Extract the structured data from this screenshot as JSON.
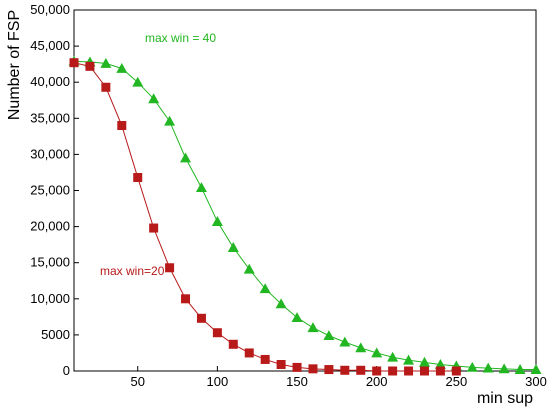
{
  "chart_data": {
    "type": "line",
    "xlabel": "min sup",
    "ylabel": "Number of FSP",
    "xlim": [
      10,
      300
    ],
    "ylim": [
      0,
      50000
    ],
    "x_ticks": [
      50,
      100,
      150,
      200,
      250,
      300
    ],
    "y_ticks": [
      0,
      5000,
      10000,
      15000,
      20000,
      25000,
      30000,
      35000,
      40000,
      45000,
      50000
    ],
    "x_tick_labels": [
      "50",
      "100",
      "150",
      "200",
      "250",
      "300"
    ],
    "y_tick_labels": [
      "0",
      "5000",
      "10,000",
      "15,000",
      "20,000",
      "25,000",
      "30,000",
      "35,000",
      "40,000",
      "45,000",
      "50,000"
    ],
    "grid": false,
    "annotations": [
      "max win = 40",
      "max win=20"
    ],
    "series": [
      {
        "color": "#22b722",
        "marker": "triangle",
        "x": [
          10,
          20,
          30,
          40,
          50,
          60,
          70,
          80,
          90,
          100,
          110,
          120,
          130,
          140,
          150,
          160,
          170,
          180,
          190,
          200,
          210,
          220,
          230,
          240,
          250,
          260,
          270,
          280,
          290,
          300
        ],
        "values": [
          42900,
          42800,
          42600,
          41900,
          40000,
          37700,
          34600,
          29500,
          25400,
          20700,
          17100,
          14100,
          11400,
          9300,
          7400,
          6000,
          4900,
          4000,
          3200,
          2500,
          1900,
          1500,
          1200,
          900,
          700,
          500,
          400,
          300,
          200,
          200
        ]
      },
      {
        "color": "#b81a1a",
        "marker": "square",
        "x": [
          10,
          20,
          30,
          40,
          50,
          60,
          70,
          80,
          90,
          100,
          110,
          120,
          130,
          140,
          150,
          160,
          170,
          180,
          190,
          200,
          210,
          220,
          230,
          240,
          250
        ],
        "values": [
          42700,
          42200,
          39300,
          34000,
          26800,
          19800,
          14300,
          10000,
          7300,
          5300,
          3700,
          2500,
          1600,
          900,
          500,
          300,
          200,
          100,
          100,
          0,
          0,
          0,
          0,
          0,
          0
        ]
      }
    ]
  }
}
